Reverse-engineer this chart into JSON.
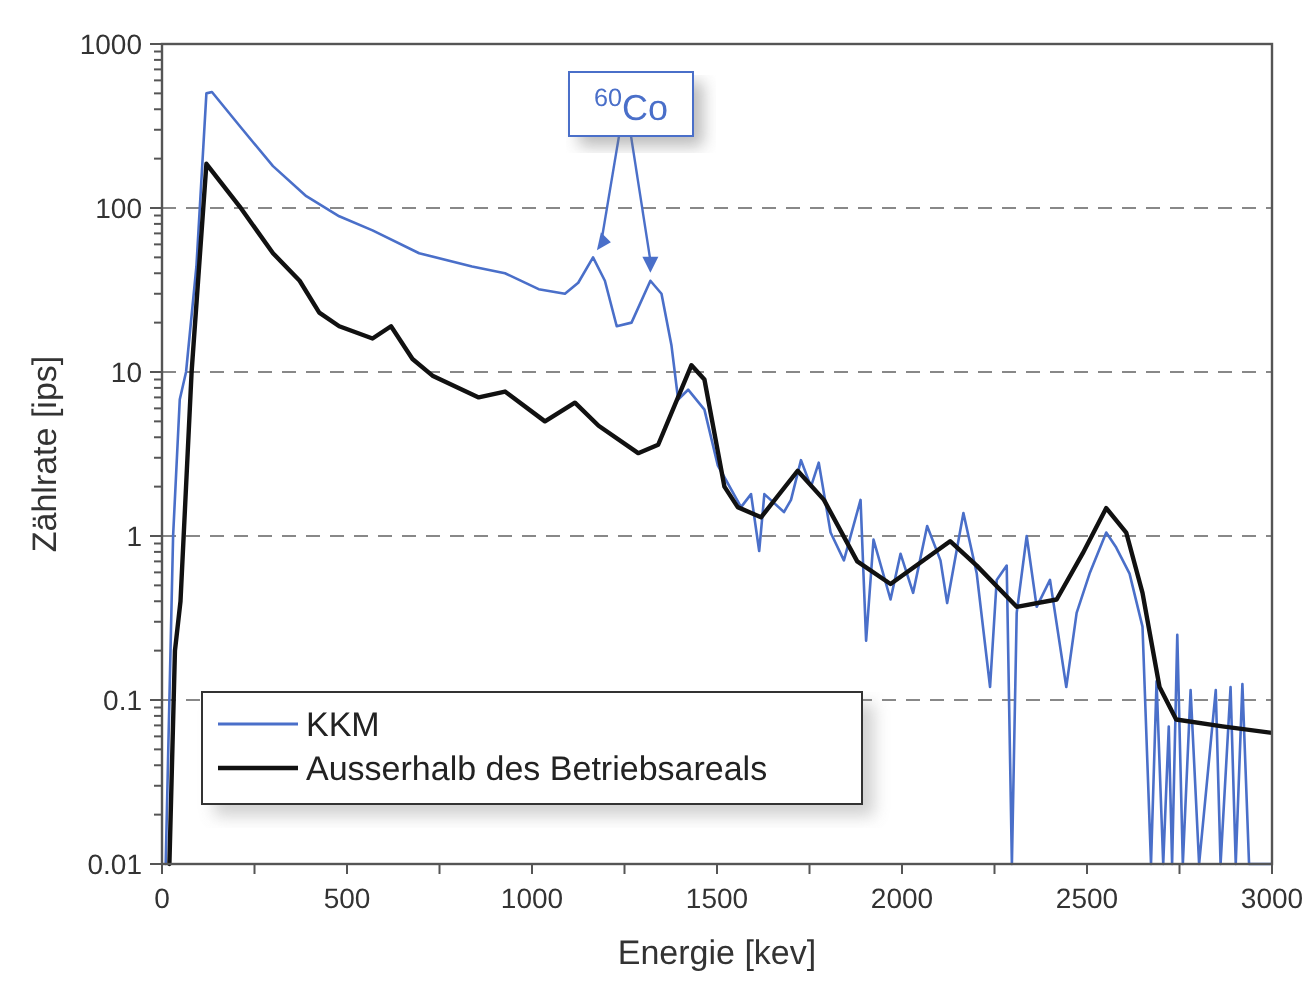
{
  "chart_data": {
    "type": "line",
    "xlabel": "Energie [kev]",
    "ylabel": "Zählrate [ips]",
    "log": "y",
    "grid": "y",
    "legend": "bottom left",
    "line_style": "solid",
    "xlim": [
      0,
      3000
    ],
    "ylim": [
      0.01,
      1000
    ],
    "xticks": [
      0,
      {
        "value": 250,
        "label": null
      },
      500,
      {
        "value": 750,
        "label": null
      },
      1000,
      {
        "value": 1250,
        "label": null
      },
      1500,
      {
        "value": 1750,
        "label": null
      },
      2000,
      {
        "value": 2250,
        "label": null
      },
      2500,
      {
        "value": 2750,
        "label": null
      },
      3000
    ],
    "yticks": [
      0.01,
      0.1,
      1,
      10,
      100,
      1000
    ],
    "annotations": [
      "$^{60}$Co"
    ],
    "series": [
      {
        "name": "KKM",
        "color": "#4a6fc9",
        "x": [
          10,
          30,
          48,
          65,
          93,
          120,
          135,
          210,
          300,
          390,
          479,
          569,
          695,
          838,
          927,
          1018,
          1089,
          1125,
          1165,
          1197,
          1229,
          1269,
          1320,
          1350,
          1377,
          1395,
          1422,
          1466,
          1502,
          1565,
          1592,
          1614,
          1628,
          1681,
          1700,
          1727,
          1754,
          1775,
          1807,
          1843,
          1888,
          1903,
          1923,
          1969,
          1996,
          2030,
          2068,
          2104,
          2122,
          2166,
          2202,
          2238,
          2256,
          2283,
          2297,
          2310,
          2337,
          2364,
          2400,
          2444,
          2472,
          2507,
          2552,
          2579,
          2615,
          2650,
          2673,
          2688,
          2706,
          2721,
          2730,
          2744,
          2759,
          2780,
          2803,
          2848,
          2861,
          2888,
          2902,
          2920,
          2938,
          3000
        ],
        "values": [
          0.01,
          1,
          6.8,
          10,
          44,
          500,
          510,
          316,
          180,
          118,
          89,
          73,
          53,
          44,
          40,
          32,
          30,
          35,
          50,
          36,
          19,
          20,
          36,
          30,
          14.5,
          6.8,
          7.8,
          5.9,
          2.7,
          1.5,
          1.8,
          0.81,
          1.8,
          1.4,
          1.66,
          2.9,
          2.0,
          2.8,
          1.05,
          0.71,
          1.66,
          0.23,
          0.95,
          0.41,
          0.78,
          0.45,
          1.15,
          0.71,
          0.39,
          1.38,
          0.59,
          0.12,
          0.54,
          0.66,
          0.01,
          0.34,
          1.0,
          0.37,
          0.54,
          0.12,
          0.34,
          0.59,
          1.05,
          0.85,
          0.59,
          0.28,
          0.01,
          0.13,
          0.01,
          0.069,
          0.01,
          0.25,
          0.01,
          0.115,
          0.01,
          0.115,
          0.01,
          0.12,
          0.01,
          0.125,
          0.01,
          0.01
        ]
      },
      {
        "name": "Ausserhalb des Betriebsareals",
        "color": "#111111",
        "x": [
          20,
          35,
          50,
          80,
          120,
          210,
          300,
          372,
          425,
          479,
          569,
          619,
          677,
          731,
          856,
          927,
          1035,
          1116,
          1180,
          1287,
          1341,
          1431,
          1466,
          1520,
          1556,
          1619,
          1718,
          1789,
          1879,
          1969,
          2130,
          2202,
          2310,
          2418,
          2488,
          2552,
          2606,
          2650,
          2696,
          2741,
          2866,
          3000
        ],
        "values": [
          0.01,
          0.2,
          0.4,
          10,
          186,
          102,
          53,
          36,
          23,
          19,
          16,
          19,
          12,
          9.5,
          7,
          7.6,
          5,
          6.5,
          4.7,
          3.2,
          3.6,
          11,
          9,
          2,
          1.5,
          1.3,
          2.5,
          1.66,
          0.7,
          0.51,
          0.93,
          0.66,
          0.37,
          0.41,
          0.78,
          1.48,
          1.05,
          0.45,
          0.12,
          0.076,
          0.069,
          0.063
        ]
      }
    ]
  }
}
